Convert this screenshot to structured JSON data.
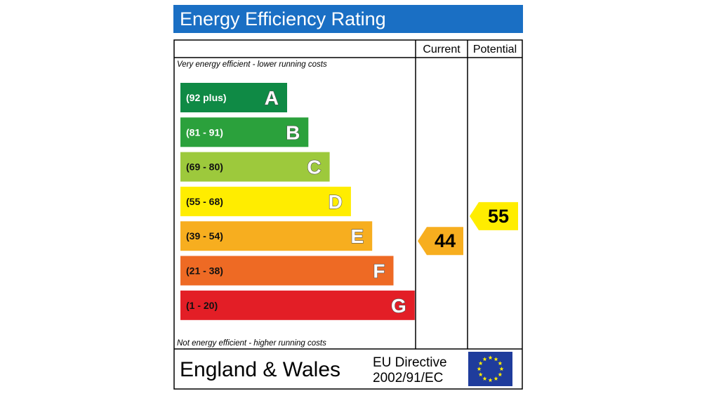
{
  "title": "Energy Efficiency Rating",
  "headers": {
    "current": "Current",
    "potential": "Potential"
  },
  "notes": {
    "top": "Very energy efficient - lower running costs",
    "bottom": "Not energy efficient - higher running costs"
  },
  "footer": {
    "region": "England & Wales",
    "directive_line1": "EU Directive",
    "directive_line2": "2002/91/EC"
  },
  "chart_data": {
    "type": "bar",
    "bands": [
      {
        "letter": "A",
        "range": "(92 plus)",
        "min": 92,
        "max": 100,
        "color": "#0f8a45",
        "range_text_color": "#ffffff"
      },
      {
        "letter": "B",
        "range": "(81 - 91)",
        "min": 81,
        "max": 91,
        "color": "#2ba13c",
        "range_text_color": "#ffffff"
      },
      {
        "letter": "C",
        "range": "(69 - 80)",
        "min": 69,
        "max": 80,
        "color": "#9dc93c",
        "range_text_color": "#111111"
      },
      {
        "letter": "D",
        "range": "(55 - 68)",
        "min": 55,
        "max": 68,
        "color": "#ffed00",
        "range_text_color": "#111111"
      },
      {
        "letter": "E",
        "range": "(39 - 54)",
        "min": 39,
        "max": 54,
        "color": "#f7ae1f",
        "range_text_color": "#111111"
      },
      {
        "letter": "F",
        "range": "(21 - 38)",
        "min": 21,
        "max": 38,
        "color": "#ee6a24",
        "range_text_color": "#111111"
      },
      {
        "letter": "G",
        "range": "(1 - 20)",
        "min": 1,
        "max": 20,
        "color": "#e31e26",
        "range_text_color": "#111111"
      }
    ],
    "current": {
      "value": 44,
      "band": "E",
      "color": "#f7ae1f"
    },
    "potential": {
      "value": 55,
      "band": "D",
      "color": "#ffed00"
    }
  },
  "colors": {
    "title_bar": "#1a6fc4",
    "eu_flag": "#1f3c9c",
    "eu_stars": "#ffed00"
  }
}
